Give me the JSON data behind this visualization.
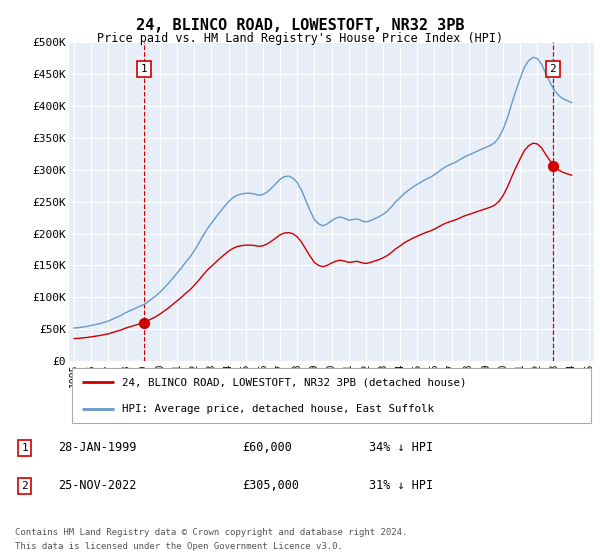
{
  "title": "24, BLINCO ROAD, LOWESTOFT, NR32 3PB",
  "subtitle": "Price paid vs. HM Land Registry's House Price Index (HPI)",
  "legend_line1": "24, BLINCO ROAD, LOWESTOFT, NR32 3PB (detached house)",
  "legend_line2": "HPI: Average price, detached house, East Suffolk",
  "footer1": "Contains HM Land Registry data © Crown copyright and database right 2024.",
  "footer2": "This data is licensed under the Open Government Licence v3.0.",
  "annotation1_label": "1",
  "annotation1_date": "28-JAN-1999",
  "annotation1_price": "£60,000",
  "annotation1_hpi": "34% ↓ HPI",
  "annotation2_label": "2",
  "annotation2_date": "25-NOV-2022",
  "annotation2_price": "£305,000",
  "annotation2_hpi": "31% ↓ HPI",
  "sale1_year": 1999.08,
  "sale1_price": 60000,
  "sale2_year": 2022.9,
  "sale2_price": 305000,
  "ylim_min": 0,
  "ylim_max": 500000,
  "yticks": [
    0,
    50000,
    100000,
    150000,
    200000,
    250000,
    300000,
    350000,
    400000,
    450000,
    500000
  ],
  "ytick_labels": [
    "£0",
    "£50K",
    "£100K",
    "£150K",
    "£200K",
    "£250K",
    "£300K",
    "£350K",
    "£400K",
    "£450K",
    "£500K"
  ],
  "background_color": "#e8eef8",
  "hpi_color": "#6699cc",
  "sale_color": "#cc0000",
  "dashed_line_color": "#cc0000",
  "grid_color": "#ffffff",
  "hpi_years": [
    1995.0,
    1995.25,
    1995.5,
    1995.75,
    1996.0,
    1996.25,
    1996.5,
    1996.75,
    1997.0,
    1997.25,
    1997.5,
    1997.75,
    1998.0,
    1998.25,
    1998.5,
    1998.75,
    1999.0,
    1999.25,
    1999.5,
    1999.75,
    2000.0,
    2000.25,
    2000.5,
    2000.75,
    2001.0,
    2001.25,
    2001.5,
    2001.75,
    2002.0,
    2002.25,
    2002.5,
    2002.75,
    2003.0,
    2003.25,
    2003.5,
    2003.75,
    2004.0,
    2004.25,
    2004.5,
    2004.75,
    2005.0,
    2005.25,
    2005.5,
    2005.75,
    2006.0,
    2006.25,
    2006.5,
    2006.75,
    2007.0,
    2007.25,
    2007.5,
    2007.75,
    2008.0,
    2008.25,
    2008.5,
    2008.75,
    2009.0,
    2009.25,
    2009.5,
    2009.75,
    2010.0,
    2010.25,
    2010.5,
    2010.75,
    2011.0,
    2011.25,
    2011.5,
    2011.75,
    2012.0,
    2012.25,
    2012.5,
    2012.75,
    2013.0,
    2013.25,
    2013.5,
    2013.75,
    2014.0,
    2014.25,
    2014.5,
    2014.75,
    2015.0,
    2015.25,
    2015.5,
    2015.75,
    2016.0,
    2016.25,
    2016.5,
    2016.75,
    2017.0,
    2017.25,
    2017.5,
    2017.75,
    2018.0,
    2018.25,
    2018.5,
    2018.75,
    2019.0,
    2019.25,
    2019.5,
    2019.75,
    2020.0,
    2020.25,
    2020.5,
    2020.75,
    2021.0,
    2021.25,
    2021.5,
    2021.75,
    2022.0,
    2022.25,
    2022.5,
    2022.75,
    2023.0,
    2023.25,
    2023.5,
    2023.75,
    2024.0
  ],
  "hpi_values": [
    52000,
    52500,
    53500,
    54500,
    56000,
    57500,
    59000,
    61000,
    63000,
    66000,
    69000,
    72000,
    76000,
    79000,
    82000,
    85000,
    88000,
    92000,
    97000,
    102000,
    108000,
    115000,
    122000,
    130000,
    138000,
    146000,
    155000,
    163000,
    173000,
    184000,
    196000,
    207000,
    216000,
    225000,
    234000,
    242000,
    250000,
    256000,
    260000,
    262000,
    263000,
    263000,
    262000,
    260000,
    261000,
    265000,
    271000,
    278000,
    285000,
    289000,
    290000,
    287000,
    280000,
    268000,
    252000,
    236000,
    222000,
    215000,
    212000,
    215000,
    220000,
    224000,
    226000,
    224000,
    221000,
    222000,
    223000,
    220000,
    218000,
    220000,
    223000,
    226000,
    230000,
    235000,
    242000,
    250000,
    256000,
    263000,
    268000,
    273000,
    277000,
    281000,
    285000,
    288000,
    292000,
    297000,
    302000,
    306000,
    309000,
    312000,
    316000,
    320000,
    323000,
    326000,
    329000,
    332000,
    335000,
    338000,
    342000,
    350000,
    363000,
    381000,
    403000,
    424000,
    443000,
    461000,
    471000,
    476000,
    474000,
    465000,
    450000,
    436000,
    424000,
    416000,
    411000,
    408000,
    405000
  ],
  "sale_years": [
    1999.08,
    2022.9
  ],
  "sale_prices": [
    60000,
    305000
  ]
}
